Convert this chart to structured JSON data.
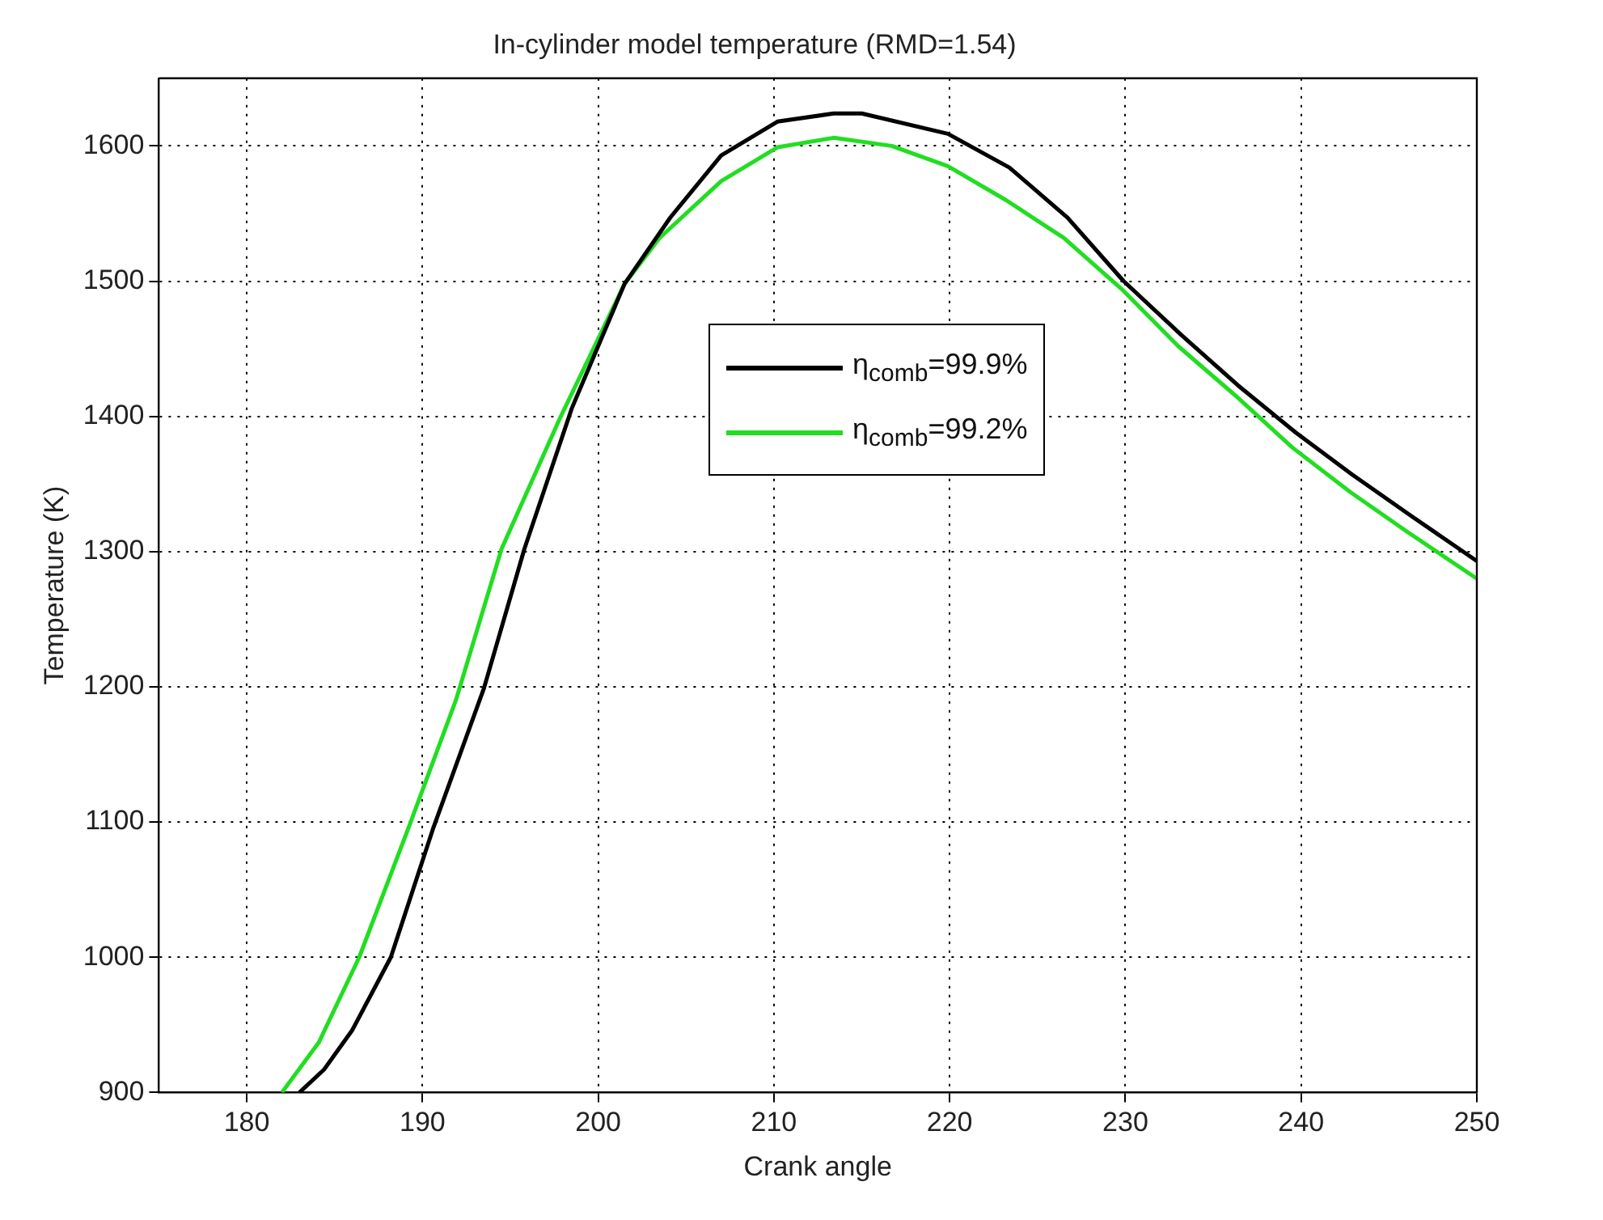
{
  "chart_data": {
    "type": "line",
    "title": "In-cylinder model temperature (RMD=1.54)",
    "xlabel": "Crank angle",
    "ylabel": "Temperature (K)",
    "xlim": [
      175,
      250
    ],
    "xticks": [
      180,
      190,
      200,
      210,
      220,
      230,
      240,
      250
    ],
    "ylim": [
      900,
      1650
    ],
    "yticks": [
      900,
      1000,
      1100,
      1200,
      1300,
      1400,
      1500,
      1600
    ],
    "grid": true,
    "legend": "center",
    "line_style": "solid",
    "marker": "none",
    "series": [
      {
        "name": "η$_{comb}$=99.9%",
        "color": "#000000",
        "x": [
          183.0,
          184.4,
          186.0,
          188.2,
          190.6,
          193.5,
          195.8,
          198.5,
          201.5,
          204.1,
          207.0,
          210.2,
          213.4,
          215.0,
          219.9,
          223.4,
          226.7,
          229.9,
          233.2,
          236.4,
          239.7,
          242.9,
          246.2,
          250
        ],
        "values": [
          900,
          917,
          946,
          1000,
          1095,
          1199,
          1302,
          1406,
          1498,
          1547,
          1593,
          1618,
          1624,
          1624,
          1609,
          1584,
          1547,
          1500,
          1460,
          1423,
          1388,
          1357,
          1327,
          1293
        ]
      },
      {
        "name": "η$_{comb}$=99.2%",
        "color": "#22dd22",
        "x": [
          182.0,
          184.1,
          186.4,
          189.3,
          191.9,
          194.5,
          197.8,
          201.5,
          203.5,
          207.0,
          210.2,
          213.4,
          216.7,
          219.9,
          223.2,
          226.5,
          229.8,
          233.0,
          236.3,
          239.5,
          242.8,
          246.0,
          250
        ],
        "values": [
          900,
          937,
          1000,
          1099,
          1190,
          1302,
          1398,
          1498,
          1532,
          1574,
          1599,
          1606,
          1600,
          1585,
          1560,
          1532,
          1494,
          1452,
          1415,
          1377,
          1344,
          1315,
          1280
        ]
      }
    ]
  }
}
